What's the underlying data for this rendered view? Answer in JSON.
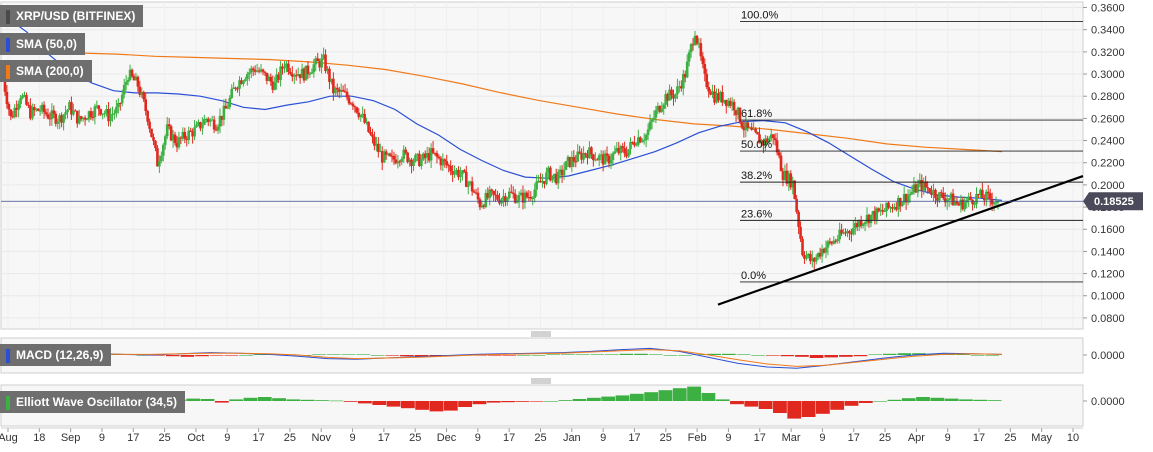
{
  "legends": {
    "pair": "XRP/USD (BITFINEX)",
    "sma50": "SMA (50,0)",
    "sma200": "SMA (200,0)",
    "macd": "MACD (12,26,9)",
    "ewo": "Elliott Wave Oscillator (34,5)"
  },
  "colors": {
    "up": "#3cb043",
    "down": "#e0281e",
    "sma50": "#2a4fd6",
    "sma200": "#f07a1a",
    "trendline": "#000000",
    "price_tag": "#4a4a5a"
  },
  "chart_data": [
    {
      "type": "candlestick",
      "title": "XRP/USD (BITFINEX)",
      "ylim": [
        0.07,
        0.365
      ],
      "y_ticks": [
        "0.0800",
        "0.1000",
        "0.1200",
        "0.1400",
        "0.1600",
        "0.1800",
        "0.2000",
        "0.2200",
        "0.2400",
        "0.2600",
        "0.2800",
        "0.3000",
        "0.3200",
        "0.3400",
        "0.3600"
      ],
      "x_ticks": [
        "Aug",
        "18",
        "Sep",
        "9",
        "17",
        "25",
        "Oct",
        "9",
        "17",
        "25",
        "Nov",
        "9",
        "17",
        "25",
        "Dec",
        "9",
        "17",
        "25",
        "Jan",
        "9",
        "17",
        "25",
        "Feb",
        "9",
        "17",
        "Mar",
        "9",
        "17",
        "25",
        "Apr",
        "9",
        "17",
        "25",
        "May",
        "10"
      ],
      "last_price": "0.18525",
      "last_price_value": 0.18525,
      "ohlc_path": [
        0.305,
        0.26,
        0.282,
        0.265,
        0.268,
        0.262,
        0.26,
        0.27,
        0.258,
        0.265,
        0.27,
        0.262,
        0.268,
        0.3,
        0.29,
        0.262,
        0.22,
        0.25,
        0.238,
        0.245,
        0.25,
        0.26,
        0.255,
        0.268,
        0.29,
        0.3,
        0.305,
        0.298,
        0.29,
        0.31,
        0.302,
        0.3,
        0.308,
        0.312,
        0.285,
        0.282,
        0.275,
        0.26,
        0.24,
        0.225,
        0.222,
        0.228,
        0.223,
        0.222,
        0.228,
        0.222,
        0.215,
        0.21,
        0.2,
        0.183,
        0.19,
        0.188,
        0.192,
        0.188,
        0.19,
        0.2,
        0.21,
        0.206,
        0.22,
        0.225,
        0.23,
        0.225,
        0.222,
        0.23,
        0.23,
        0.242,
        0.245,
        0.265,
        0.28,
        0.282,
        0.3,
        0.34,
        0.295,
        0.28,
        0.278,
        0.272,
        0.252,
        0.245,
        0.238,
        0.245,
        0.21,
        0.202,
        0.14,
        0.13,
        0.142,
        0.148,
        0.155,
        0.16,
        0.168,
        0.172,
        0.175,
        0.18,
        0.186,
        0.192,
        0.2,
        0.196,
        0.19,
        0.188,
        0.182,
        0.186,
        0.19,
        0.188,
        0.18525
      ],
      "series": [
        {
          "name": "SMA (50,0)",
          "path": [
            0.352,
            0.338,
            0.318,
            0.302,
            0.292,
            0.285,
            0.283,
            0.283,
            0.282,
            0.28,
            0.276,
            0.27,
            0.268,
            0.272,
            0.275,
            0.28,
            0.28,
            0.276,
            0.268,
            0.255,
            0.245,
            0.232,
            0.222,
            0.213,
            0.207,
            0.206,
            0.208,
            0.213,
            0.218,
            0.224,
            0.23,
            0.238,
            0.247,
            0.253,
            0.257,
            0.258,
            0.256,
            0.248,
            0.238,
            0.226,
            0.214,
            0.203,
            0.196,
            0.191,
            0.189,
            0.188,
            0.186
          ]
        },
        {
          "name": "SMA (200,0)",
          "path": [
            0.322,
            0.321,
            0.319,
            0.318,
            0.316,
            0.315,
            0.314,
            0.313,
            0.311,
            0.308,
            0.304,
            0.298,
            0.291,
            0.283,
            0.276,
            0.27,
            0.264,
            0.259,
            0.255,
            0.253,
            0.25,
            0.246,
            0.242,
            0.237,
            0.234,
            0.232,
            0.23
          ]
        }
      ],
      "trendline": {
        "from": 0.092,
        "to": 0.208
      },
      "fibonacci": [
        {
          "label": "100.0%",
          "value": 0.3475
        },
        {
          "label": "61.8%",
          "value": 0.2585
        },
        {
          "label": "50.0%",
          "value": 0.2305
        },
        {
          "label": "38.2%",
          "value": 0.2025
        },
        {
          "label": "23.6%",
          "value": 0.168
        },
        {
          "label": "0.0%",
          "value": 0.1125
        }
      ]
    },
    {
      "type": "bar",
      "title": "MACD (12,26,9)",
      "y_ticks": [
        "0.0000"
      ],
      "histogram": [
        0.002,
        0.003,
        0.002,
        0.001,
        0.001,
        0.001,
        0.002,
        0.002,
        0.001,
        0,
        -0.001,
        -0.002,
        -0.003,
        -0.002,
        -0.001,
        -0.001,
        0,
        0.001,
        0.001,
        0.001,
        0,
        0.001,
        0.001,
        0.001,
        0.001,
        0,
        -0.001,
        -0.002,
        -0.003,
        -0.002,
        -0.001,
        -0.001,
        -0.001,
        -0.001,
        -0.001,
        0,
        0,
        0.001,
        0.001,
        0.001,
        0.001,
        0.001,
        0.002,
        0.002,
        0.001,
        0,
        0,
        0.001,
        0.002,
        0.002,
        0.001,
        0,
        -0.001,
        -0.002,
        -0.003,
        -0.005,
        -0.004,
        -0.003,
        -0.002,
        0.001,
        0.002,
        0.003,
        0.003,
        0.002,
        0.001,
        0.001,
        0,
        0
      ],
      "series": [
        {
          "name": "MACD",
          "path": [
            0.001,
            0.002,
            0.004,
            0.002,
            0.001,
            0,
            0.002,
            0.004,
            0.003,
            0.001,
            -0.002,
            -0.006,
            -0.007,
            -0.005,
            -0.003,
            -0.001,
            0.001,
            0.002,
            0.003,
            0.004,
            0.006,
            0.009,
            0.011,
            0.006,
            -0.004,
            -0.014,
            -0.02,
            -0.022,
            -0.017,
            -0.011,
            -0.005,
            0,
            0.003,
            0.002,
            0.001
          ]
        },
        {
          "name": "Signal",
          "path": [
            0.002,
            0.002,
            0.003,
            0.002,
            0.001,
            0.001,
            0.002,
            0.003,
            0.003,
            0.002,
            0,
            -0.004,
            -0.006,
            -0.005,
            -0.004,
            -0.002,
            0,
            0.001,
            0.002,
            0.003,
            0.005,
            0.007,
            0.009,
            0.007,
            0,
            -0.008,
            -0.015,
            -0.019,
            -0.017,
            -0.012,
            -0.007,
            -0.002,
            0.001,
            0.002,
            0.001
          ]
        }
      ]
    },
    {
      "type": "bar",
      "title": "Elliott Wave Oscillator (34,5)",
      "y_ticks": [
        "0.0000"
      ],
      "histogram": [
        0.003,
        0.006,
        0.005,
        -0.004,
        0.004,
        0.008,
        0.01,
        0.007,
        0.004,
        0.003,
        0.002,
        0.001,
        -0.002,
        -0.006,
        -0.01,
        -0.014,
        -0.018,
        -0.022,
        -0.026,
        -0.024,
        -0.015,
        -0.008,
        -0.004,
        -0.003,
        -0.002,
        -0.001,
        0,
        0.002,
        0.005,
        0.008,
        0.011,
        0.014,
        0.018,
        0.022,
        0.027,
        0.032,
        0.036,
        0.02,
        0.004,
        -0.008,
        -0.014,
        -0.02,
        -0.03,
        -0.044,
        -0.04,
        -0.032,
        -0.022,
        -0.012,
        -0.005,
        0,
        0.003,
        0.007,
        0.01,
        0.008,
        0.006,
        0.004,
        0.003,
        0.002
      ]
    }
  ]
}
